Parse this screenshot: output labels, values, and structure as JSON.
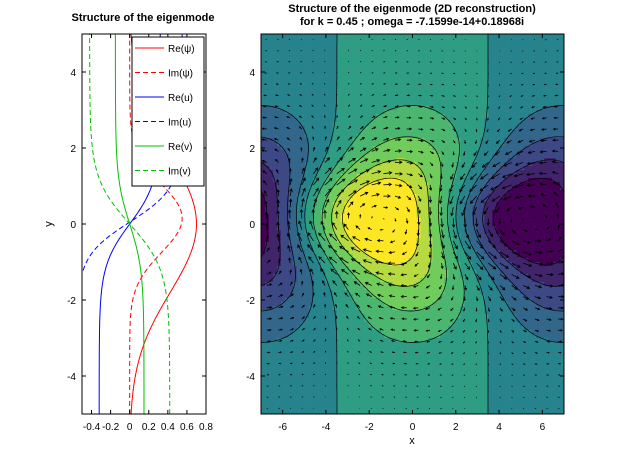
{
  "chart_data": [
    {
      "type": "line",
      "title": "Structure of the eigenmode",
      "xlabel": "",
      "ylabel": "y",
      "xlim": [
        -0.5,
        0.8
      ],
      "ylim": [
        -5,
        5
      ],
      "xticks": [
        "-0.4",
        "-0.2",
        "0",
        "0.2",
        "0.4",
        "0.6",
        "0.8"
      ],
      "yticks": [
        "-4",
        "-2",
        "0",
        "2",
        "4"
      ],
      "legend_position": "top-right",
      "series": [
        {
          "name": "Re(ψ)",
          "color": "#ff0000",
          "dash": "solid",
          "model": "gauss",
          "amp": 0.7,
          "width": 1.8,
          "offset": 0.0
        },
        {
          "name": "Im(ψ)",
          "color": "#ff0000",
          "dash": "dashed",
          "model": "gauss",
          "amp": 0.55,
          "width": 0.9,
          "offset": 0.15
        },
        {
          "name": "Re(u)",
          "color": "#0000ff",
          "dash": "solid",
          "model": "odd",
          "amp": 0.32,
          "width": 1.1,
          "offset": 0.0
        },
        {
          "name": "Im(u)",
          "color": "#0000ff",
          "dash": "dashed",
          "model": "odd",
          "amp": 0.55,
          "width": 0.9,
          "offset": 0.05
        },
        {
          "name": "Re(v)",
          "color": "#00c000",
          "dash": "solid",
          "model": "odd",
          "amp": -0.15,
          "width": 1.2,
          "offset": 0.0
        },
        {
          "name": "Im(v)",
          "color": "#00c000",
          "dash": "dashed",
          "model": "odd",
          "amp": -0.42,
          "width": 1.2,
          "offset": 0.0
        }
      ]
    },
    {
      "type": "heatmap",
      "title": "Structure of the eigenmode (2D reconstruction)",
      "subtitle": "for k = 0.45 ; omega = -7.1599e-14+0.18968i",
      "xlabel": "x",
      "ylabel": "",
      "xlim": [
        -7,
        7
      ],
      "ylim": [
        -5,
        5
      ],
      "xticks": [
        "-6",
        "-4",
        "-2",
        "0",
        "2",
        "4",
        "6"
      ],
      "yticks": [
        "-4",
        "-2",
        "0",
        "2",
        "4"
      ],
      "colormap": [
        "#440154",
        "#3b528b",
        "#21918c",
        "#5ec962",
        "#fde725"
      ],
      "k": 0.45,
      "overlay": "contour lines and velocity quiver arrows"
    }
  ]
}
